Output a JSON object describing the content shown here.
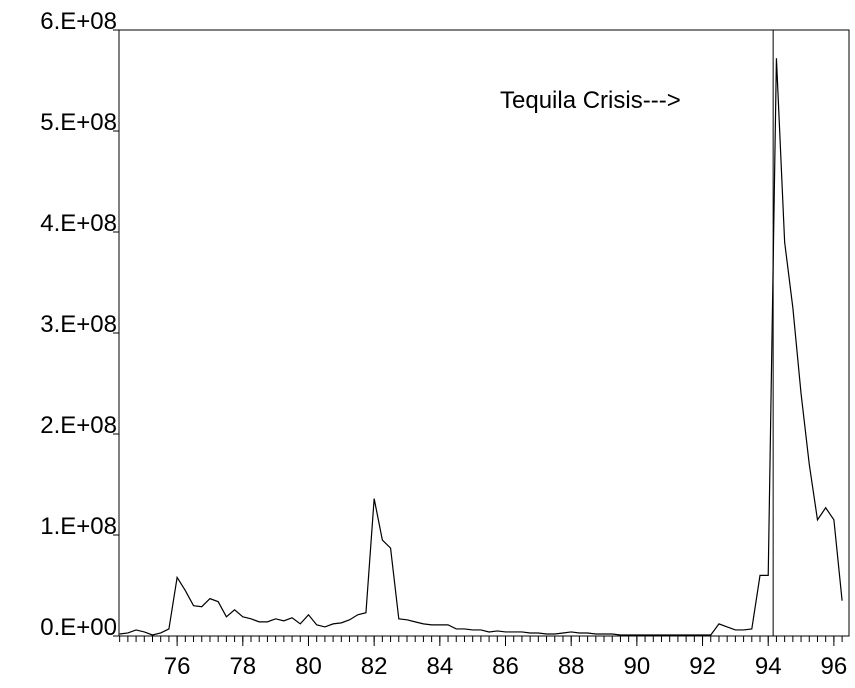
{
  "chart_data": {
    "type": "line",
    "annotation": {
      "text": "Tequila Crisis--->",
      "x": 94.15
    },
    "x": [
      74.25,
      74.5,
      74.75,
      75,
      75.25,
      75.5,
      75.75,
      76,
      76.25,
      76.5,
      76.75,
      77,
      77.25,
      77.5,
      77.75,
      78,
      78.25,
      78.5,
      78.75,
      79,
      79.25,
      79.5,
      79.75,
      80,
      80.25,
      80.5,
      80.75,
      81,
      81.25,
      81.5,
      81.75,
      82,
      82.25,
      82.5,
      82.75,
      83,
      83.25,
      83.5,
      83.75,
      84,
      84.25,
      84.5,
      84.75,
      85,
      85.25,
      85.5,
      85.75,
      86,
      86.25,
      86.5,
      86.75,
      87,
      87.25,
      87.5,
      87.75,
      88,
      88.25,
      88.5,
      88.75,
      89,
      89.25,
      89.5,
      89.75,
      90,
      90.25,
      90.5,
      90.75,
      91,
      91.25,
      91.5,
      91.75,
      92,
      92.25,
      92.5,
      92.75,
      93,
      93.25,
      93.5,
      93.75,
      94,
      94.25,
      94.5,
      94.75,
      95,
      95.25,
      95.5,
      95.75,
      96,
      96.25
    ],
    "series": [
      {
        "color": "#000000",
        "values": [
          2000000.0,
          3000000.0,
          6000000.0,
          4000000.0,
          1000000.0,
          3000000.0,
          7000000.0,
          58000000.0,
          45000000.0,
          30000000.0,
          29000000.0,
          37000000.0,
          34000000.0,
          19000000.0,
          26000000.0,
          19000000.0,
          17000000.0,
          14000000.0,
          14000000.0,
          17000000.0,
          15000000.0,
          18000000.0,
          12000000.0,
          21000000.0,
          11000000.0,
          9000000.0,
          12000000.0,
          13000000.0,
          16000000.0,
          21000000.0,
          23000000.0,
          136000000.0,
          95000000.0,
          87000000.0,
          17000000.0,
          16000000.0,
          14000000.0,
          12000000.0,
          11000000.0,
          11000000.0,
          11000000.0,
          7000000.0,
          7000000.0,
          6000000.0,
          6000000.0,
          4000000.0,
          5000000.0,
          4000000.0,
          4000000.0,
          4000000.0,
          3000000.0,
          3000000.0,
          2000000.0,
          2000000.0,
          3000000.0,
          4000000.0,
          3000000.0,
          3000000.0,
          2000000.0,
          2000000.0,
          2000000.0,
          1000000.0,
          1000000.0,
          1000000.0,
          1000000.0,
          1000000.0,
          1000000.0,
          1000000.0,
          1000000.0,
          1000000.0,
          1000000.0,
          1000000.0,
          1000000.0,
          12000000.0,
          9000000.0,
          6000000.0,
          6000000.0,
          7000000.0,
          60000000.0,
          60000000.0,
          572000000.0,
          390000000.0,
          325000000.0,
          240000000.0,
          170000000.0,
          115000000.0,
          127000000.0,
          115000000.0,
          35000000.0
        ]
      }
    ],
    "xlim": [
      74.23,
      96.46
    ],
    "xticks": [
      76,
      78,
      80,
      82,
      84,
      86,
      88,
      90,
      92,
      94,
      96
    ],
    "ylim": [
      0,
      600000000
    ],
    "yticks": [
      {
        "value": 0,
        "label": "0.E+00"
      },
      {
        "value": 100000000,
        "label": "1.E+08"
      },
      {
        "value": 200000000,
        "label": "2.E+08"
      },
      {
        "value": 300000000,
        "label": "3.E+08"
      },
      {
        "value": 400000000,
        "label": "4.E+08"
      },
      {
        "value": 500000000,
        "label": "5.E+08"
      },
      {
        "value": 600000000,
        "label": "6.E+08"
      }
    ]
  }
}
